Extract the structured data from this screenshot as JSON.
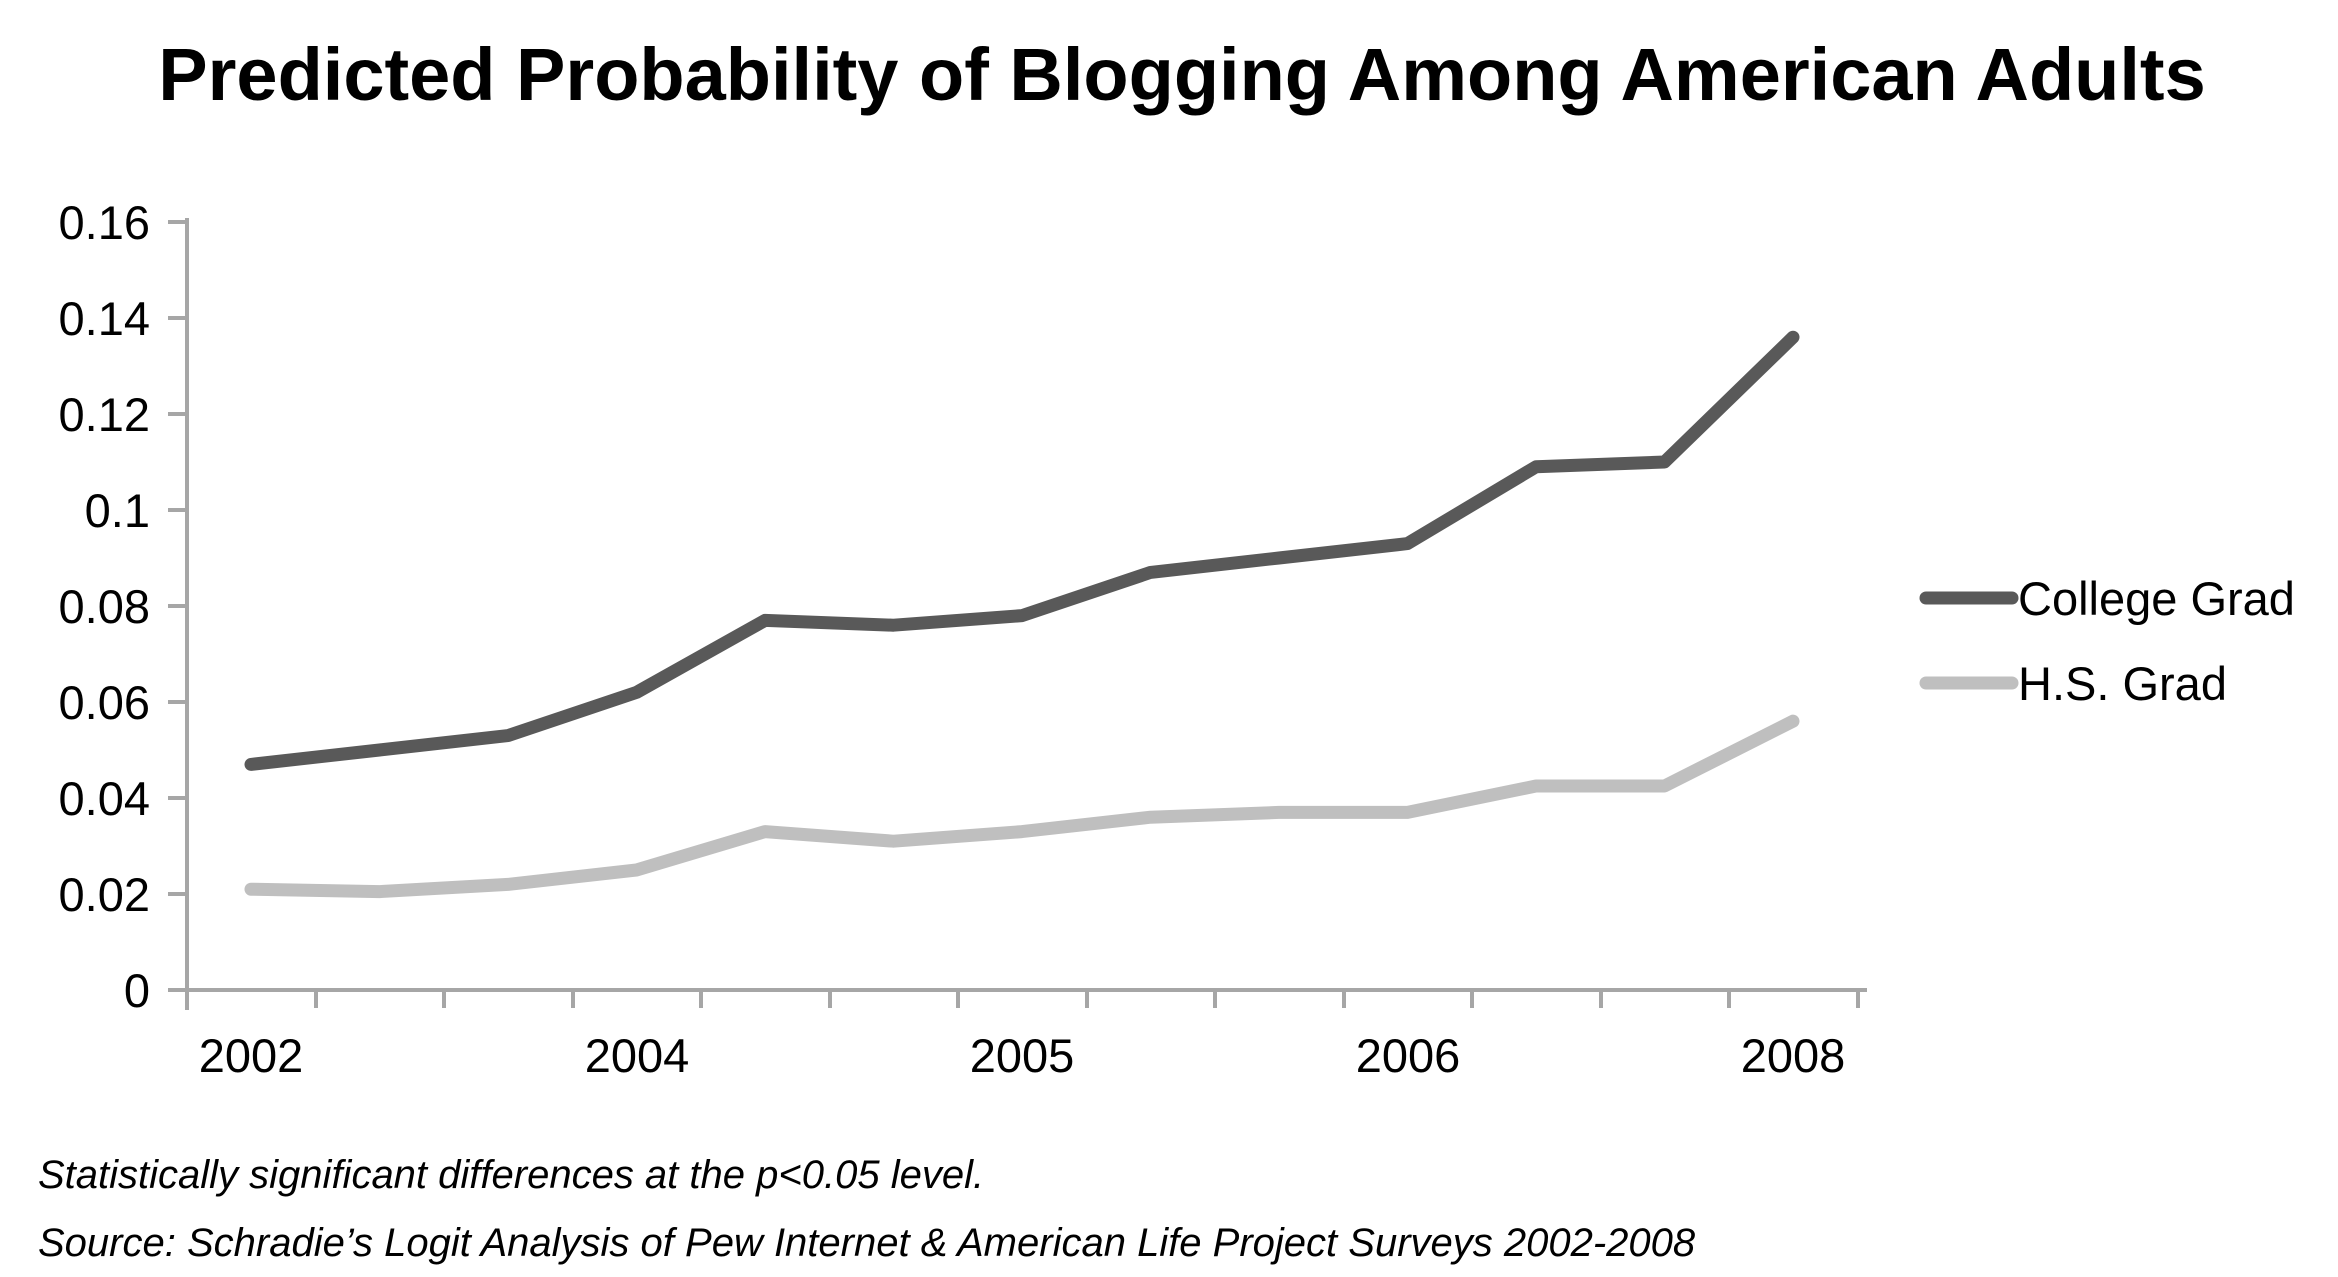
{
  "title": "Predicted Probability of Blogging Among American Adults",
  "chart_data": {
    "type": "line",
    "x_tick_labels": [
      {
        "index": 0,
        "label": "2002"
      },
      {
        "index": 3,
        "label": "2004"
      },
      {
        "index": 6,
        "label": "2005"
      },
      {
        "index": 9,
        "label": "2006"
      },
      {
        "index": 12,
        "label": "2008"
      }
    ],
    "num_points": 13,
    "series": [
      {
        "name": "College Grad",
        "color": "#595959",
        "values": [
          0.047,
          0.05,
          0.053,
          0.062,
          0.077,
          0.076,
          0.078,
          0.087,
          0.09,
          0.093,
          0.109,
          0.11,
          0.136
        ]
      },
      {
        "name": "H.S. Grad",
        "color": "#bfbfbf",
        "values": [
          0.021,
          0.0205,
          0.022,
          0.025,
          0.033,
          0.031,
          0.033,
          0.036,
          0.037,
          0.037,
          0.0425,
          0.0425,
          0.056
        ]
      }
    ],
    "ylim": [
      0,
      0.16
    ],
    "y_tick_labels": [
      "0",
      "0.02",
      "0.04",
      "0.06",
      "0.08",
      "0.1",
      "0.12",
      "0.14",
      "0.16"
    ],
    "grid": false,
    "legend_position": "right",
    "axis_color": "#a6a6a6"
  },
  "notes": {
    "line1": "Statistically significant differences at the p<0.05 level.",
    "line2": "Source: Schradie’s Logit Analysis of Pew Internet & American Life Project Surveys 2002-2008"
  }
}
